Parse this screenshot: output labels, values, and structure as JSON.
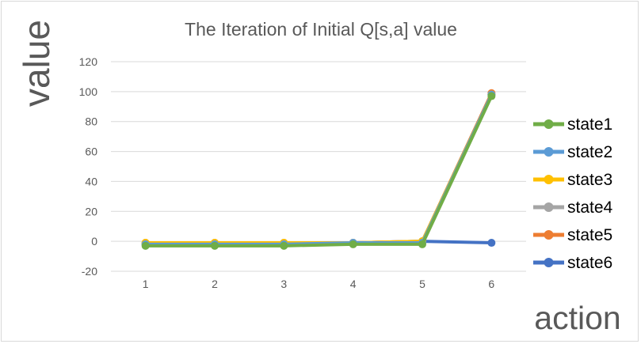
{
  "chart_data": {
    "type": "line",
    "title": "The Iteration of Initial Q[s,a] value",
    "xlabel": "action",
    "ylabel": "value",
    "categories": [
      "1",
      "2",
      "3",
      "4",
      "5",
      "6"
    ],
    "ylim": [
      -20,
      120
    ],
    "yticks": [
      -20,
      0,
      20,
      40,
      60,
      80,
      100,
      120
    ],
    "grid": true,
    "legend_position": "right",
    "series": [
      {
        "name": "state1",
        "color": "#70ad47",
        "values": [
          -3,
          -3,
          -3,
          -2,
          -2,
          97
        ]
      },
      {
        "name": "state2",
        "color": "#5b9bd5",
        "values": [
          -2,
          -2,
          -2,
          -1,
          -1,
          98
        ]
      },
      {
        "name": "state3",
        "color": "#ffc000",
        "values": [
          -1,
          -1,
          -1,
          -1,
          0,
          98
        ]
      },
      {
        "name": "state4",
        "color": "#a5a5a5",
        "values": [
          -1,
          -1,
          -1,
          -1,
          0,
          98
        ]
      },
      {
        "name": "state5",
        "color": "#ed7d31",
        "values": [
          -1,
          -1,
          -1,
          -1,
          0,
          99
        ]
      },
      {
        "name": "state6",
        "color": "#4472c4",
        "values": [
          -2,
          -2,
          -2,
          -1,
          0,
          -1
        ]
      }
    ]
  }
}
